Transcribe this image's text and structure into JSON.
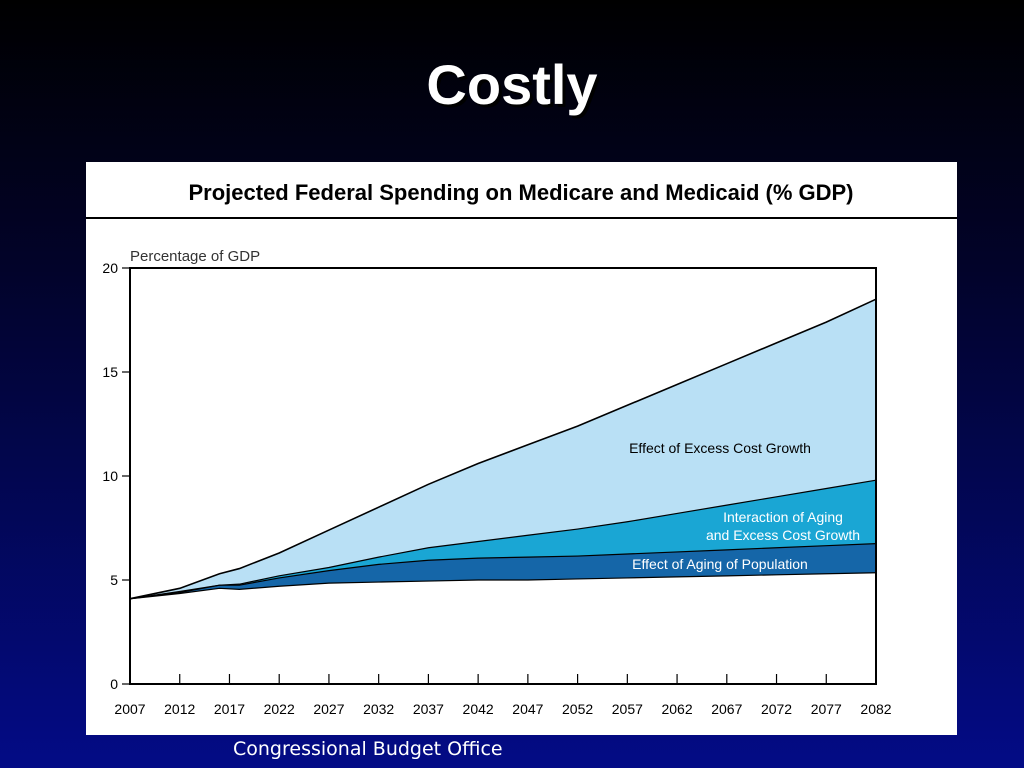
{
  "slide": {
    "title": "Costly",
    "source": "Congressional Budget Office"
  },
  "chart_data": {
    "type": "area",
    "title": "Projected Federal Spending on Medicare and Medicaid (% GDP)",
    "ylabel": "Percentage of GDP",
    "xlabel": "",
    "xlim": [
      2007,
      2082
    ],
    "ylim": [
      0,
      20
    ],
    "x_ticks": [
      "2007",
      "2012",
      "2017",
      "2022",
      "2027",
      "2032",
      "2037",
      "2042",
      "2047",
      "2052",
      "2057",
      "2062",
      "2067",
      "2072",
      "2077",
      "2082"
    ],
    "y_ticks": [
      "0",
      "5",
      "10",
      "15",
      "20"
    ],
    "stacked": true,
    "x": [
      2007,
      2012,
      2016,
      2018,
      2022,
      2027,
      2032,
      2037,
      2042,
      2047,
      2052,
      2057,
      2062,
      2067,
      2072,
      2077,
      2082
    ],
    "series": [
      {
        "name": "",
        "color": "#ffffff",
        "values": [
          4.1,
          4.35,
          4.6,
          4.55,
          4.7,
          4.85,
          4.9,
          4.95,
          5.0,
          5.0,
          5.05,
          5.1,
          5.15,
          5.2,
          5.25,
          5.3,
          5.35
        ]
      },
      {
        "name": "Effect of Aging of Population",
        "color": "#1566a8",
        "values": [
          4.1,
          4.4,
          4.75,
          4.75,
          5.1,
          5.45,
          5.75,
          5.95,
          6.05,
          6.1,
          6.15,
          6.25,
          6.35,
          6.45,
          6.55,
          6.65,
          6.75
        ]
      },
      {
        "name": "Interaction of Aging and Excess Cost Growth",
        "color": "#1aa6d4",
        "values": [
          4.1,
          4.45,
          4.75,
          4.8,
          5.2,
          5.6,
          6.1,
          6.55,
          6.85,
          7.15,
          7.45,
          7.8,
          8.2,
          8.6,
          9.0,
          9.4,
          9.8
        ]
      },
      {
        "name": "Effect of Excess Cost Growth",
        "color": "#b9e0f5",
        "values": [
          4.1,
          4.6,
          5.3,
          5.55,
          6.3,
          7.4,
          8.5,
          9.6,
          10.6,
          11.5,
          12.4,
          13.4,
          14.4,
          15.4,
          16.4,
          17.4,
          18.5
        ]
      }
    ],
    "annotations": [
      {
        "text": "Effect of Excess Cost Growth"
      },
      {
        "text": "Interaction of Aging\nand Excess Cost Growth"
      },
      {
        "text": "Effect of Aging of Population"
      }
    ],
    "grid": false,
    "legend": "none"
  }
}
